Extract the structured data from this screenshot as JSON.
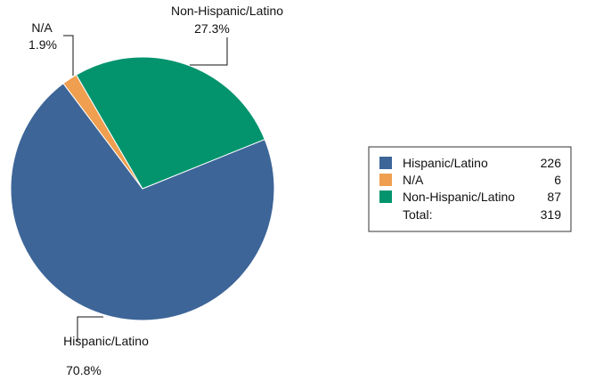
{
  "chart_data": {
    "type": "pie",
    "slices": [
      {
        "label": "Hispanic/Latino",
        "count": 226,
        "percent": 70.8,
        "percent_label": "70.8%",
        "color": "#3d6598"
      },
      {
        "label": "N/A",
        "count": 6,
        "percent": 1.9,
        "percent_label": "1.9%",
        "color": "#ef9f4f"
      },
      {
        "label": "Non-Hispanic/Latino",
        "count": 87,
        "percent": 27.3,
        "percent_label": "27.3%",
        "color": "#03946e"
      }
    ],
    "total_label": "Total:",
    "total": 319,
    "legend_position": "right"
  }
}
